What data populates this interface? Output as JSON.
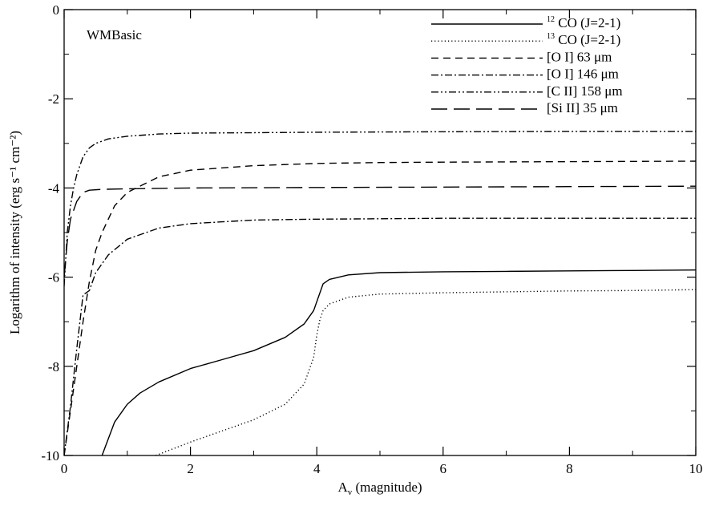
{
  "chart_data": {
    "type": "line",
    "title": "",
    "annotation": "WMBasic",
    "xlabel": {
      "main": "A",
      "sub": "v",
      "rest": " (magnitude)"
    },
    "ylabel": "Logarithm of intensity (erg s⁻¹ cm⁻²)",
    "xlim": [
      0,
      10
    ],
    "ylim": [
      -10,
      0
    ],
    "xticks": [
      "0",
      "2",
      "4",
      "6",
      "8",
      "10"
    ],
    "yticks": [
      "-10",
      "-8",
      "-6",
      "-4",
      "-2",
      "0"
    ],
    "grid": false,
    "legend_position": "top-right",
    "series": [
      {
        "name": "¹²CO (J=2-1)",
        "sup": "12",
        "label": "CO (J=2-1)",
        "dash": "solid",
        "x": [
          0.6,
          0.8,
          1.0,
          1.2,
          1.5,
          2.0,
          2.5,
          3.0,
          3.5,
          3.8,
          3.95,
          4.05,
          4.1,
          4.2,
          4.5,
          5.0,
          6.0,
          7.0,
          8.0,
          9.0,
          10.0
        ],
        "y": [
          -10.0,
          -9.25,
          -8.85,
          -8.6,
          -8.35,
          -8.05,
          -7.85,
          -7.65,
          -7.35,
          -7.05,
          -6.75,
          -6.35,
          -6.15,
          -6.05,
          -5.95,
          -5.9,
          -5.88,
          -5.87,
          -5.86,
          -5.85,
          -5.84
        ]
      },
      {
        "name": "¹³CO (J=2-1)",
        "sup": "13",
        "label": "CO (J=2-1)",
        "dash": "dotted",
        "x": [
          1.45,
          2.0,
          2.5,
          3.0,
          3.5,
          3.8,
          3.95,
          4.0,
          4.05,
          4.1,
          4.2,
          4.5,
          5.0,
          6.0,
          7.0,
          8.0,
          9.0,
          10.0
        ],
        "y": [
          -10.0,
          -9.7,
          -9.45,
          -9.2,
          -8.85,
          -8.4,
          -7.8,
          -7.3,
          -6.95,
          -6.75,
          -6.6,
          -6.45,
          -6.38,
          -6.35,
          -6.33,
          -6.31,
          -6.3,
          -6.28
        ]
      },
      {
        "name": "[O I] 63 μm",
        "label": "[O I] 63 μm",
        "dash": "dashed",
        "x": [
          0.0,
          0.1,
          0.2,
          0.3,
          0.4,
          0.5,
          0.6,
          0.8,
          1.0,
          1.5,
          2.0,
          3.0,
          4.0,
          5.0,
          6.0,
          8.0,
          10.0
        ],
        "y": [
          -10.0,
          -9.0,
          -8.0,
          -7.0,
          -6.1,
          -5.4,
          -5.0,
          -4.4,
          -4.1,
          -3.75,
          -3.6,
          -3.5,
          -3.45,
          -3.43,
          -3.42,
          -3.41,
          -3.4
        ]
      },
      {
        "name": "[O I] 146 μm",
        "label": "[O I] 146 μm",
        "dash": "dashdot",
        "x": [
          0.0,
          0.1,
          0.2,
          0.3,
          0.4,
          0.5,
          0.7,
          1.0,
          1.5,
          2.0,
          3.0,
          4.0,
          5.0,
          6.0,
          8.0,
          10.0
        ],
        "y": [
          -10.0,
          -8.9,
          -7.6,
          -6.4,
          -6.3,
          -5.9,
          -5.5,
          -5.15,
          -4.9,
          -4.8,
          -4.72,
          -4.7,
          -4.69,
          -4.68,
          -4.68,
          -4.68
        ]
      },
      {
        "name": "[C II] 158 μm",
        "label": "[C II] 158 μm",
        "dash": "dashdotdot",
        "x": [
          0.0,
          0.05,
          0.1,
          0.15,
          0.2,
          0.3,
          0.4,
          0.5,
          0.7,
          1.0,
          1.5,
          2.0,
          3.0,
          4.0,
          6.0,
          8.0,
          10.0
        ],
        "y": [
          -6.2,
          -5.0,
          -4.4,
          -4.0,
          -3.7,
          -3.3,
          -3.1,
          -3.0,
          -2.9,
          -2.84,
          -2.79,
          -2.77,
          -2.76,
          -2.75,
          -2.74,
          -2.73,
          -2.73
        ]
      },
      {
        "name": "[Si II] 35 μm",
        "label": "[Si II] 35 μm",
        "dash": "longdash",
        "x": [
          0.0,
          0.05,
          0.1,
          0.2,
          0.3,
          0.4,
          0.6,
          1.0,
          2.0,
          4.0,
          6.0,
          8.0,
          10.0
        ],
        "y": [
          -6.0,
          -5.2,
          -4.7,
          -4.3,
          -4.1,
          -4.05,
          -4.03,
          -4.02,
          -4.0,
          -3.99,
          -3.98,
          -3.97,
          -3.96
        ]
      }
    ]
  }
}
